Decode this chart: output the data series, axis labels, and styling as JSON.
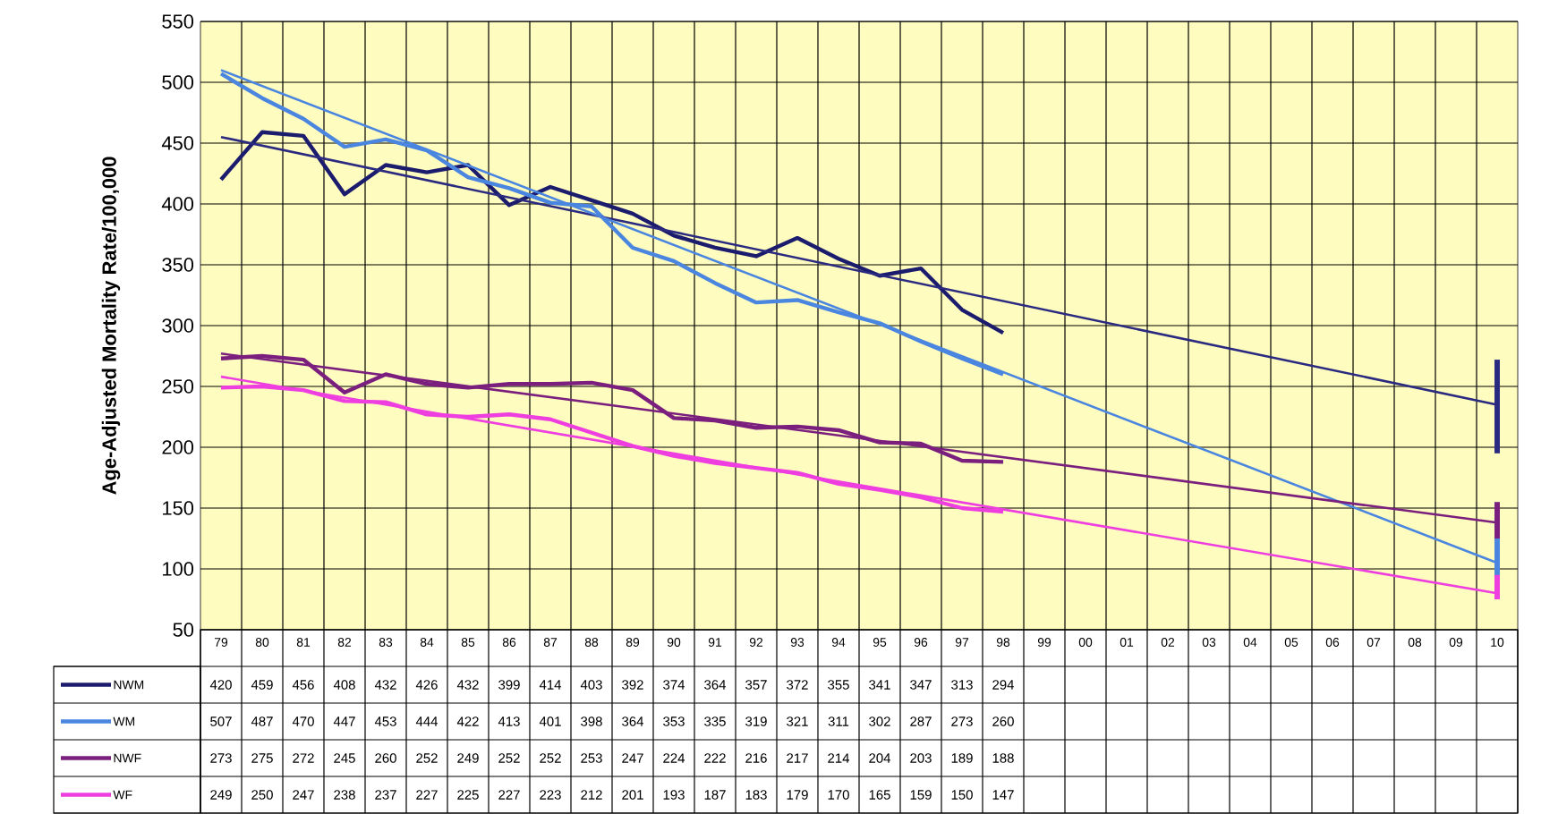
{
  "chart_data": {
    "type": "line",
    "ylabel": "Age-Adjusted Mortality Rate/100,000",
    "categories": [
      "79",
      "80",
      "81",
      "82",
      "83",
      "84",
      "85",
      "86",
      "87",
      "88",
      "89",
      "90",
      "91",
      "92",
      "93",
      "94",
      "95",
      "96",
      "97",
      "98",
      "99",
      "00",
      "01",
      "02",
      "03",
      "04",
      "05",
      "06",
      "07",
      "08",
      "09",
      "10"
    ],
    "ylim": [
      50,
      550
    ],
    "yticks": [
      50,
      100,
      150,
      200,
      250,
      300,
      350,
      400,
      450,
      500,
      550
    ],
    "grid": true,
    "legend": "bottom",
    "marker": "none",
    "series": [
      {
        "name": "NWM",
        "color": "#1c1c6e",
        "values": [
          420,
          459,
          456,
          408,
          432,
          426,
          432,
          399,
          414,
          403,
          392,
          374,
          364,
          357,
          372,
          355,
          341,
          347,
          313,
          294,
          null,
          null,
          null,
          null,
          null,
          null,
          null,
          null,
          null,
          null,
          null,
          null
        ],
        "value_labels": [
          "420",
          "459",
          "456",
          "408",
          "432",
          "426",
          "432",
          "399",
          "414",
          "403",
          "392",
          "374",
          "364",
          "357",
          "372",
          "355",
          "341",
          "347",
          "313",
          "294",
          null,
          null,
          null,
          null,
          null,
          null,
          null,
          null,
          null,
          null,
          null,
          null
        ]
      },
      {
        "name": "WM",
        "color": "#4a86e0",
        "values": [
          507,
          487,
          470,
          447,
          453,
          444,
          422,
          413,
          401,
          398,
          364,
          353,
          335,
          319,
          321,
          311,
          302,
          287,
          273,
          260,
          null,
          null,
          null,
          null,
          null,
          null,
          null,
          null,
          null,
          null,
          null,
          null
        ],
        "value_labels": [
          "507",
          "487",
          "470",
          "447",
          "453",
          "444",
          "422",
          "413",
          "401",
          "398",
          "364",
          "353",
          "335",
          "319",
          "321",
          "311",
          "302",
          "287",
          "273",
          "260",
          null,
          null,
          null,
          null,
          null,
          null,
          null,
          null,
          null,
          null,
          null,
          null
        ]
      },
      {
        "name": "NWF",
        "color": "#7b1f7e",
        "values": [
          273,
          275,
          272,
          245,
          260,
          252,
          249,
          252,
          252,
          253,
          247,
          224,
          222,
          216,
          217,
          214,
          204,
          203,
          189,
          188,
          null,
          null,
          null,
          null,
          null,
          null,
          null,
          null,
          null,
          null,
          null,
          null
        ],
        "value_labels": [
          "273",
          "275",
          "272",
          "245",
          "260",
          "252",
          "249",
          "252",
          "252",
          "253",
          "247",
          "224",
          "222",
          "216",
          "217",
          "214",
          "204",
          "203",
          "189",
          "188",
          null,
          null,
          null,
          null,
          null,
          null,
          null,
          null,
          null,
          null,
          null,
          null
        ]
      },
      {
        "name": "WF",
        "color": "#ee3ee0",
        "values": [
          249,
          250,
          247,
          238,
          237,
          227,
          225,
          227,
          223,
          212,
          201,
          193,
          187,
          183,
          179,
          170,
          165,
          159,
          150,
          147,
          null,
          null,
          null,
          null,
          null,
          null,
          null,
          null,
          null,
          null,
          null,
          null
        ],
        "value_labels": [
          "249",
          "250",
          "247",
          "238",
          "237",
          "227",
          "225",
          "227",
          "223",
          "212",
          "201",
          "193",
          "187",
          "183",
          "179",
          "170",
          "165",
          "159",
          "150",
          "147",
          null,
          null,
          null,
          null,
          null,
          null,
          null,
          null,
          null,
          null,
          null,
          null
        ]
      },
      {
        "type": "line",
        "color": "#2a2a80",
        "x": [
          "79",
          "10"
        ],
        "values": [
          455,
          235
        ],
        "errors": [
          null,
          [
            195,
            272
          ]
        ]
      },
      {
        "type": "line",
        "color": "#4a86e0",
        "x": [
          "79",
          "10"
        ],
        "values": [
          510,
          105
        ],
        "errors": [
          null,
          [
            85,
            125
          ]
        ]
      },
      {
        "type": "line",
        "color": "#7b1f7e",
        "x": [
          "79",
          "10"
        ],
        "values": [
          277,
          138
        ],
        "errors": [
          null,
          [
            125,
            155
          ]
        ]
      },
      {
        "type": "line",
        "color": "#ee3ee0",
        "x": [
          "79",
          "10"
        ],
        "values": [
          258,
          80
        ],
        "errors": [
          null,
          [
            75,
            95
          ]
        ]
      }
    ]
  }
}
